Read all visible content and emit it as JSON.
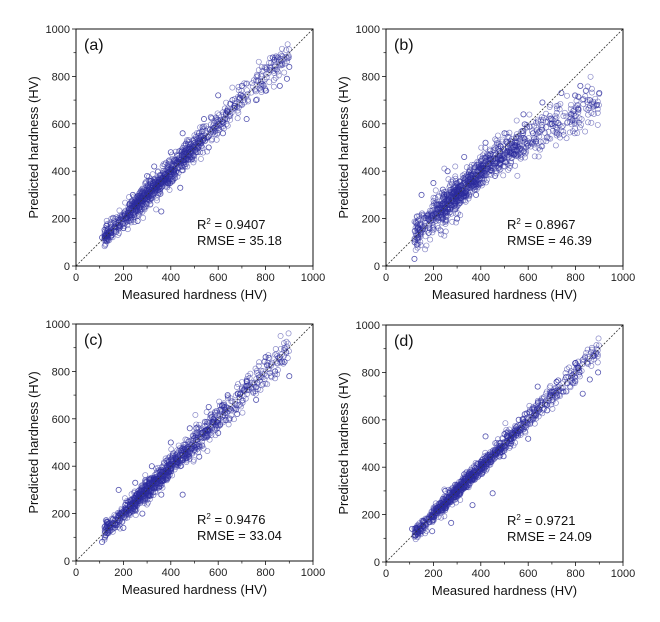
{
  "chart_data": [
    {
      "type": "scatter",
      "panel_label": "(a)",
      "xlabel": "Measured hardness (HV)",
      "ylabel": "Predicted hardness (HV)",
      "xlim": [
        0,
        1000
      ],
      "ylim": [
        0,
        1000
      ],
      "xticks": [
        0,
        200,
        400,
        600,
        800,
        1000
      ],
      "yticks": [
        0,
        200,
        400,
        600,
        800,
        1000
      ],
      "reference_line": "y = x (dotted)",
      "r2_label": "R",
      "r2_sup": "2",
      "r2_value": " = 0.9407",
      "rmse_text": "RMSE = 35.18",
      "marker_color": "#2b2b9c",
      "trend": "linear",
      "spread": 35.18,
      "points": [
        [
          110,
          120
        ],
        [
          150,
          130
        ],
        [
          200,
          160
        ],
        [
          240,
          300
        ],
        [
          260,
          190
        ],
        [
          300,
          380
        ],
        [
          330,
          420
        ],
        [
          360,
          230
        ],
        [
          400,
          480
        ],
        [
          440,
          330
        ],
        [
          450,
          560
        ],
        [
          500,
          520
        ],
        [
          540,
          620
        ],
        [
          560,
          500
        ],
        [
          600,
          720
        ],
        [
          620,
          560
        ],
        [
          660,
          700
        ],
        [
          700,
          760
        ],
        [
          720,
          620
        ],
        [
          760,
          700
        ],
        [
          800,
          740
        ],
        [
          830,
          880
        ],
        [
          860,
          760
        ],
        [
          900,
          840
        ],
        [
          890,
          790
        ]
      ]
    },
    {
      "type": "scatter",
      "panel_label": "(b)",
      "xlabel": "Measured hardness (HV)",
      "ylabel": "Predicted hardness (HV)",
      "xlim": [
        0,
        1000
      ],
      "ylim": [
        0,
        1000
      ],
      "xticks": [
        0,
        200,
        400,
        600,
        800,
        1000
      ],
      "yticks": [
        0,
        200,
        400,
        600,
        800,
        1000
      ],
      "reference_line": "y = x (dotted)",
      "r2_label": "R",
      "r2_sup": "2",
      "r2_value": " = 0.8967",
      "rmse_text": "RMSE = 46.39",
      "marker_color": "#2b2b9c",
      "trend": "saturating",
      "spread": 46.39,
      "points": [
        [
          120,
          30
        ],
        [
          130,
          90
        ],
        [
          150,
          300
        ],
        [
          180,
          140
        ],
        [
          200,
          350
        ],
        [
          230,
          150
        ],
        [
          260,
          400
        ],
        [
          300,
          200
        ],
        [
          330,
          460
        ],
        [
          380,
          300
        ],
        [
          420,
          520
        ],
        [
          460,
          380
        ],
        [
          500,
          560
        ],
        [
          540,
          470
        ],
        [
          580,
          640
        ],
        [
          620,
          560
        ],
        [
          660,
          690
        ],
        [
          700,
          600
        ],
        [
          740,
          730
        ],
        [
          780,
          640
        ],
        [
          820,
          760
        ],
        [
          860,
          700
        ],
        [
          900,
          730
        ],
        [
          890,
          680
        ]
      ]
    },
    {
      "type": "scatter",
      "panel_label": "(c)",
      "xlabel": "Measured hardness (HV)",
      "ylabel": "Predicted hardness (HV)",
      "xlim": [
        0,
        1000
      ],
      "ylim": [
        0,
        1000
      ],
      "xticks": [
        0,
        200,
        400,
        600,
        800,
        1000
      ],
      "yticks": [
        0,
        200,
        400,
        600,
        800,
        1000
      ],
      "reference_line": "y = x (dotted)",
      "r2_label": "R",
      "r2_sup": "2",
      "r2_value": " = 0.9476",
      "rmse_text": "RMSE = 33.04",
      "marker_color": "#2b2b9c",
      "trend": "linear",
      "spread": 33.04,
      "points": [
        [
          110,
          80
        ],
        [
          140,
          160
        ],
        [
          180,
          300
        ],
        [
          200,
          140
        ],
        [
          250,
          330
        ],
        [
          280,
          200
        ],
        [
          320,
          400
        ],
        [
          360,
          280
        ],
        [
          400,
          500
        ],
        [
          450,
          280
        ],
        [
          480,
          560
        ],
        [
          520,
          440
        ],
        [
          560,
          650
        ],
        [
          600,
          540
        ],
        [
          640,
          700
        ],
        [
          680,
          620
        ],
        [
          720,
          760
        ],
        [
          760,
          680
        ],
        [
          800,
          860
        ],
        [
          840,
          800
        ],
        [
          880,
          840
        ],
        [
          900,
          780
        ]
      ]
    },
    {
      "type": "scatter",
      "panel_label": "(d)",
      "xlabel": "Measured hardness (HV)",
      "ylabel": "Predicted hardness (HV)",
      "xlim": [
        0,
        1000
      ],
      "ylim": [
        0,
        1000
      ],
      "xticks": [
        0,
        200,
        400,
        600,
        800,
        1000
      ],
      "yticks": [
        0,
        200,
        400,
        600,
        800,
        1000
      ],
      "reference_line": "y = x (dotted)",
      "r2_label": "R",
      "r2_sup": "2",
      "r2_value": " = 0.9721",
      "rmse_text": "RMSE = 24.09",
      "marker_color": "#2b2b9c",
      "trend": "linear",
      "spread": 24.09,
      "points": [
        [
          110,
          140
        ],
        [
          150,
          130
        ],
        [
          195,
          130
        ],
        [
          250,
          300
        ],
        [
          275,
          165
        ],
        [
          330,
          370
        ],
        [
          365,
          240
        ],
        [
          420,
          530
        ],
        [
          450,
          290
        ],
        [
          500,
          540
        ],
        [
          560,
          600
        ],
        [
          600,
          520
        ],
        [
          640,
          740
        ],
        [
          680,
          640
        ],
        [
          720,
          760
        ],
        [
          760,
          780
        ],
        [
          800,
          840
        ],
        [
          830,
          710
        ],
        [
          860,
          770
        ],
        [
          880,
          870
        ],
        [
          895,
          800
        ]
      ]
    }
  ]
}
